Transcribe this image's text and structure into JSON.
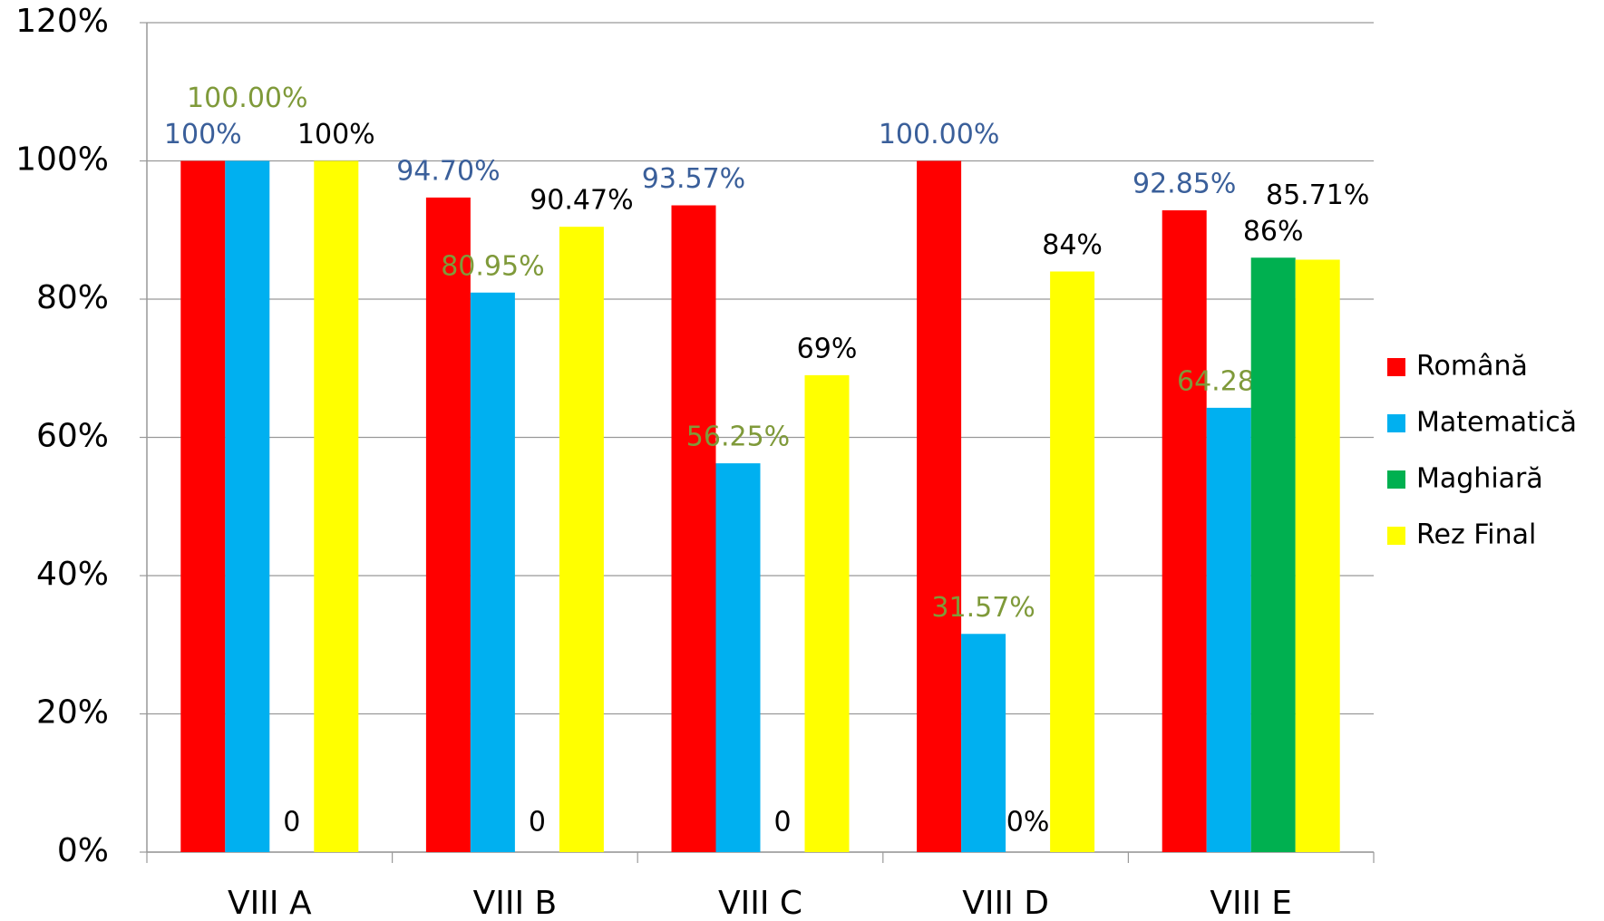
{
  "chart_data": {
    "type": "bar",
    "categories": [
      "VIII A",
      "VIII B",
      "VIII C",
      "VIII D",
      "VIII E"
    ],
    "series": [
      {
        "name": "Română",
        "color": "#ff0000",
        "label_color": "#3a5f9a",
        "values": [
          100,
          94.7,
          93.57,
          100.0,
          92.85
        ],
        "value_labels": [
          "100%",
          "94.70%",
          "93.57%",
          "100.00%",
          "92.85%"
        ]
      },
      {
        "name": "Matematică",
        "color": "#00b0f0",
        "label_color": "#7f9a3a",
        "values": [
          100,
          80.95,
          56.25,
          31.57,
          64.28
        ],
        "value_labels": [
          "100.00%",
          "80.95%",
          "56.25%",
          "31.57%",
          "64.28%"
        ]
      },
      {
        "name": "Maghiară",
        "color": "#00b050",
        "label_color": "#000000",
        "values": [
          0,
          0,
          0,
          0,
          86
        ],
        "value_labels": [
          "0",
          "0",
          "0",
          "0%",
          "86%"
        ]
      },
      {
        "name": "Rez Final",
        "color": "#ffff00",
        "label_color": "#000000",
        "values": [
          100,
          90.47,
          69,
          84,
          85.71
        ],
        "value_labels": [
          "100%",
          "90.47%",
          "69%",
          "84%",
          "85.71%"
        ]
      }
    ],
    "ylim": [
      0,
      120
    ],
    "yticks": [
      {
        "value": 0,
        "label": "0%"
      },
      {
        "value": 20,
        "label": "20%"
      },
      {
        "value": 40,
        "label": "40%"
      },
      {
        "value": 60,
        "label": "60%"
      },
      {
        "value": 80,
        "label": "80%"
      },
      {
        "value": 100,
        "label": "100%"
      },
      {
        "value": 120,
        "label": "120%"
      }
    ],
    "grid": true,
    "legend": "right"
  }
}
